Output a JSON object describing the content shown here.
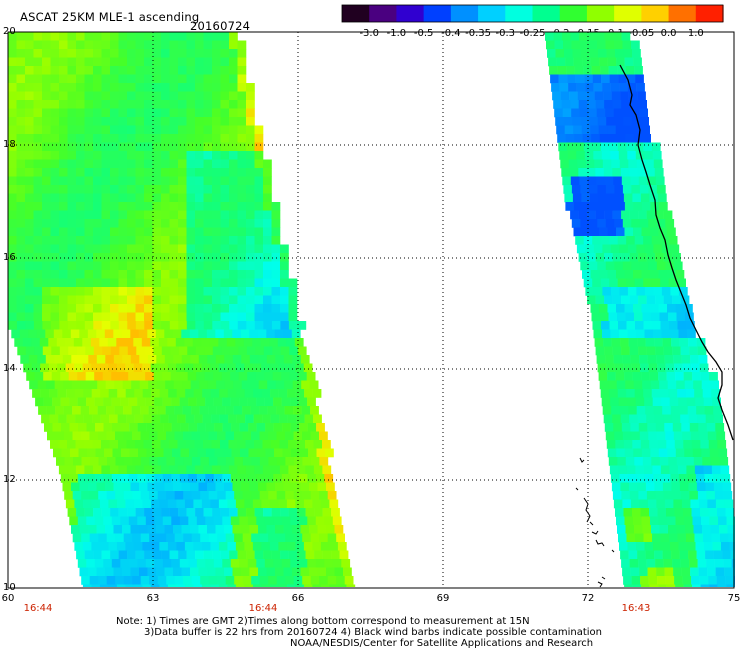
{
  "title": "ASCAT 25KM MLE-1 ascending",
  "date": "20160724",
  "colorbar": {
    "labels": [
      "-3.0",
      "-1.0",
      "-0.5",
      "-0.4",
      "-0.35",
      "-0.3",
      "-0.25",
      "-0.2",
      "-0.15",
      "-0.1",
      "-0.05",
      "0.0",
      "1.0"
    ],
    "colors": [
      "#200020",
      "#4a0080",
      "#3000d0",
      "#0040ff",
      "#0090ff",
      "#00d0ff",
      "#00ffe0",
      "#00ff90",
      "#30ff30",
      "#90ff00",
      "#e0ff00",
      "#ffd000",
      "#ff7000",
      "#ff2000"
    ]
  },
  "axes": {
    "x_ticks": [
      "60",
      "63",
      "66",
      "69",
      "72",
      "75"
    ],
    "y_ticks": [
      "10",
      "12",
      "14",
      "16",
      "18",
      "20"
    ]
  },
  "times": [
    "16:44",
    "16:44",
    "16:43"
  ],
  "notes": [
    "Note: 1) Times are GMT 2)Times along bottom correspond to measurement at 15N",
    "3)Data buffer is 22 hrs from 20160724 4) Black wind barbs indicate possible contamination",
    "NOAA/NESDIS/Center for Satellite Applications and Research"
  ],
  "colors": {
    "time_label": "#cc2200",
    "grid": "#000000",
    "coast": "#000000"
  }
}
